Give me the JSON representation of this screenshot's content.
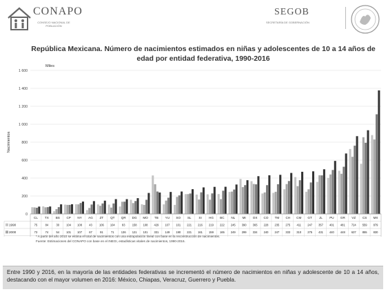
{
  "header": {
    "left_org": "CONAPO",
    "left_org_sub": "CONSEJO NACIONAL DE POBLACIÓN",
    "right_org": "SEGOB",
    "right_org_sub": "SECRETARÍA DE GOBERNACIÓN"
  },
  "notes": {
    "footnote": "* A partir del año 2010 se estima el total de nacimientos con una extrapolación lineal con base en la reconstrucción de nacimientos.",
    "source": "Fuente: Estimaciones del CONAPO con base en el INEGI, estadísticas vitales de nacimientos, 1990-2016."
  },
  "summary": "Entre 1990 y 2016, en la mayoría de las entidades federativas se incrementó el número de nacimientos en niñas y adolescente de 10 a 14 años, destacando con el mayor volumen en 2016: México, Chiapas, Veracruz, Guerrero y Puebla.",
  "colors": {
    "s1990": "#c4c4c4",
    "s2000": "#a6a6a6",
    "s2010": "#7b7b7b",
    "s2016": "#333333"
  },
  "chart_data": {
    "type": "bar",
    "title": "República Mexicana. Número de nacimientos estimados en niñas y adolescentes de 10 a 14 años de edad por entidad federativa, 1990-2016",
    "units_label": "Miles",
    "ylabel": "Nacimientos",
    "ylim": [
      0,
      1600
    ],
    "yticks": [
      "1 600",
      "1 400",
      "1 200",
      "1 000",
      "800",
      "600",
      "400",
      "200",
      "0"
    ],
    "grid": true,
    "categories": [
      "CL",
      "TX",
      "BS",
      "CP",
      "NY",
      "AG",
      "ZT",
      "QT",
      "QR",
      "DG",
      "MO",
      "TB",
      "YU",
      "SO",
      "SL",
      "SI",
      "HG",
      "BC",
      "NL",
      "MI",
      "OX",
      "CO",
      "TM",
      "CH",
      "CM",
      "GT",
      "JL",
      "PU",
      "GR",
      "VZ",
      "CS",
      "MX"
    ],
    "series": [
      {
        "name": "1990",
        "values": [
          75,
          84,
          30,
          104,
          108,
          43,
          106,
          104,
          83,
          158,
          108,
          429,
          107,
          101,
          221,
          216,
          219,
          222,
          245,
          390,
          365,
          228,
          235,
          275,
          411,
          247,
          357,
          401,
          481,
          724,
          559,
          879
        ]
      },
      {
        "name": "2000",
        "values": [
          73,
          74,
          54,
          101,
          107,
          67,
          91,
          71,
          136,
          121,
          101,
          331,
          149,
          190,
          221,
          161,
          159,
          165,
          249,
          299,
          334,
          240,
          247,
          333,
          310,
          275,
          431,
          440,
          448,
          637,
          855,
          830
        ]
      },
      {
        "name": "2010*",
        "values": [
          69,
          76,
          76,
          101,
          122,
          105,
          117,
          117,
          137,
          144,
          158,
          250,
          181,
          207,
          228,
          241,
          229,
          259,
          272,
          321,
          330,
          321,
          331,
          367,
          376,
          351,
          430,
          490,
          526,
          761,
          793,
          1111
        ]
      },
      {
        "name": "2016*",
        "values": [
          82,
          83,
          107,
          108,
          138,
          143,
          148,
          165,
          165,
          176,
          234,
          239,
          245,
          250,
          276,
          296,
          302,
          303,
          328,
          376,
          421,
          431,
          436,
          457,
          470,
          475,
          498,
          591,
          674,
          867,
          933,
          1377
        ]
      }
    ],
    "table_values": [
      [
        "75",
        "84",
        "30",
        "104",
        "108",
        "43",
        "106",
        "104",
        "83",
        "158",
        "108",
        "429",
        "107",
        "101",
        "221",
        "216",
        "219",
        "222",
        "245",
        "390",
        "365",
        "228",
        "235",
        "275",
        "411",
        "247",
        "357",
        "401",
        "481",
        "724",
        "559",
        "879"
      ],
      [
        "73",
        "74",
        "54",
        "101",
        "107",
        "67",
        "91",
        "71",
        "136",
        "121",
        "101",
        "331",
        "149",
        "190",
        "221",
        "161",
        "159",
        "165",
        "249",
        "299",
        "334",
        "240",
        "247",
        "333",
        "310",
        "275",
        "431",
        "440",
        "448",
        "637",
        "855",
        "830"
      ],
      [
        "69",
        "76",
        "76",
        "101",
        "122",
        "105",
        "117",
        "117",
        "137",
        "144",
        "158",
        "250",
        "181",
        "207",
        "228",
        "241",
        "229",
        "259",
        "272",
        "321",
        "330",
        "321",
        "331",
        "367",
        "376",
        "351",
        "430",
        "490",
        "526",
        "761",
        "793",
        "1111"
      ],
      [
        "82",
        "83",
        "107",
        "108",
        "138",
        "143",
        "148",
        "165",
        "165",
        "176",
        "234",
        "239",
        "245",
        "250",
        "276",
        "296",
        "302",
        "303",
        "328",
        "376",
        "421",
        "431",
        "436",
        "457",
        "470",
        "475",
        "498",
        "591",
        "674",
        "867",
        "933",
        "1 377"
      ]
    ],
    "legend": "table-rows"
  }
}
